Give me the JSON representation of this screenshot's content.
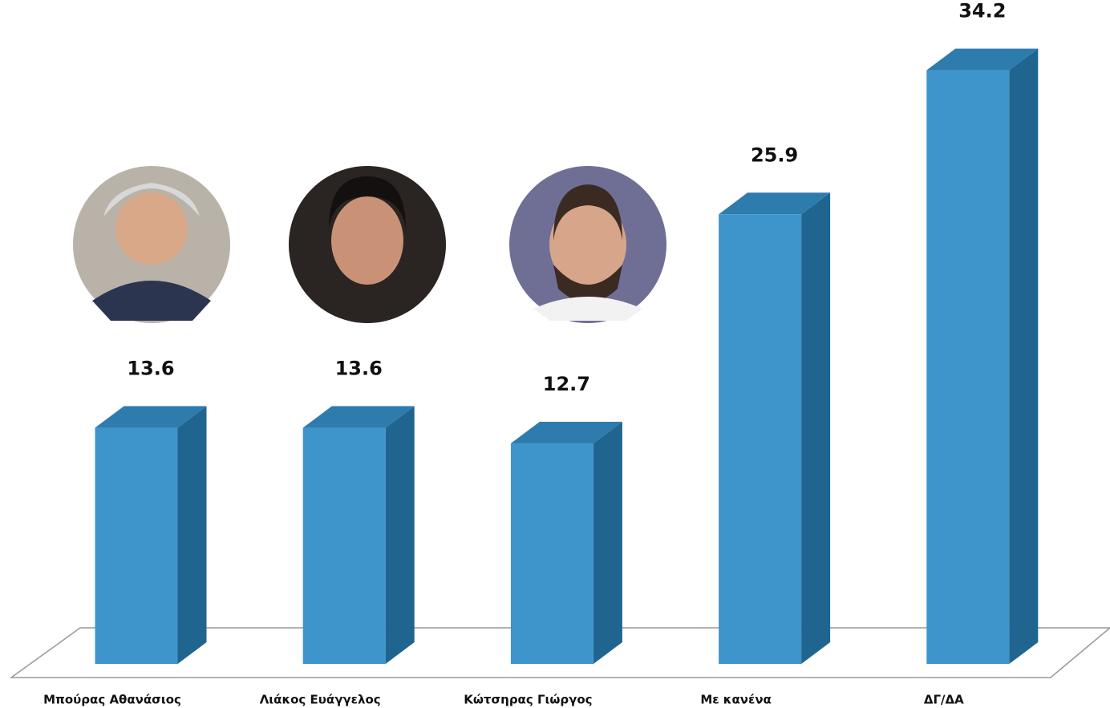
{
  "chart_data": {
    "type": "bar3d",
    "categories": [
      "Μπούρας Αθανάσιος",
      "Λιάκος Ευάγγελος",
      "Κώτσηρας Γιώργος",
      "Με κανένα",
      "ΔΓ/ΔΑ"
    ],
    "values": [
      13.6,
      13.6,
      12.7,
      25.9,
      34.2
    ],
    "color": "#3e95cb"
  }
}
